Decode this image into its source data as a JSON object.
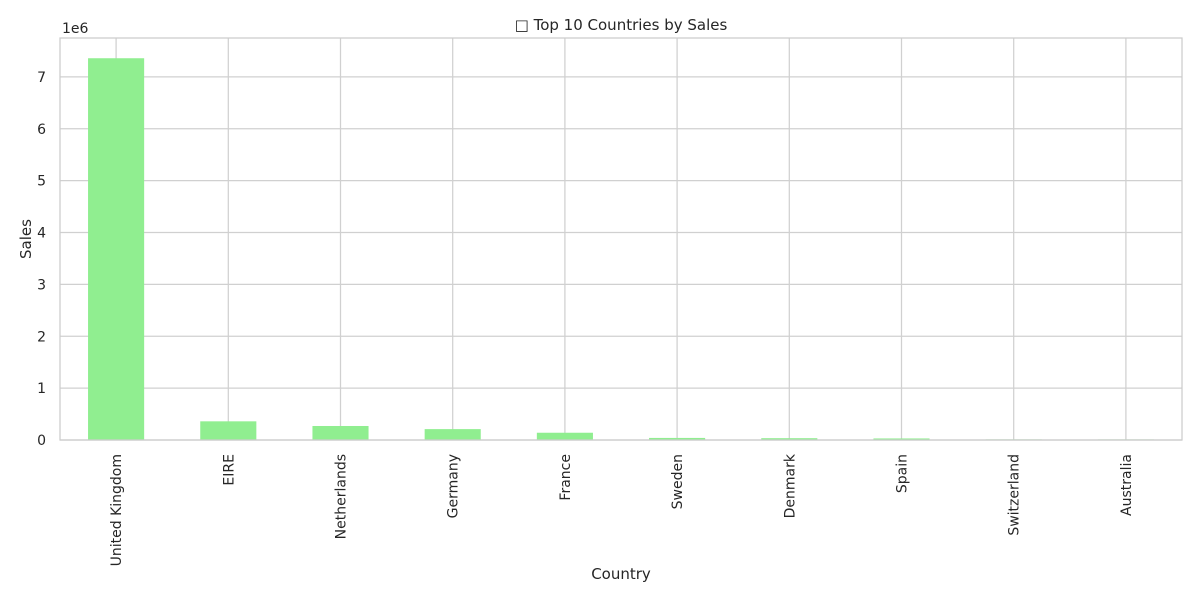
{
  "chart_data": {
    "type": "bar",
    "title": "□ Top 10 Countries by Sales",
    "xlabel": "Country",
    "ylabel": "Sales",
    "offset_label": "1e6",
    "categories": [
      "United Kingdom",
      "EIRE",
      "Netherlands",
      "Germany",
      "France",
      "Sweden",
      "Denmark",
      "Spain",
      "Switzerland",
      "Australia"
    ],
    "values": [
      7360000,
      360000,
      270000,
      210000,
      140000,
      40000,
      35000,
      30000,
      12000,
      8000
    ],
    "ylim": [
      0,
      7750000
    ],
    "yticks": [
      0,
      1,
      2,
      3,
      4,
      5,
      6,
      7
    ],
    "grid": true,
    "colors": {
      "bar": "#90ee90",
      "grid": "#d0d0d0",
      "axes": "#cccccc"
    }
  }
}
